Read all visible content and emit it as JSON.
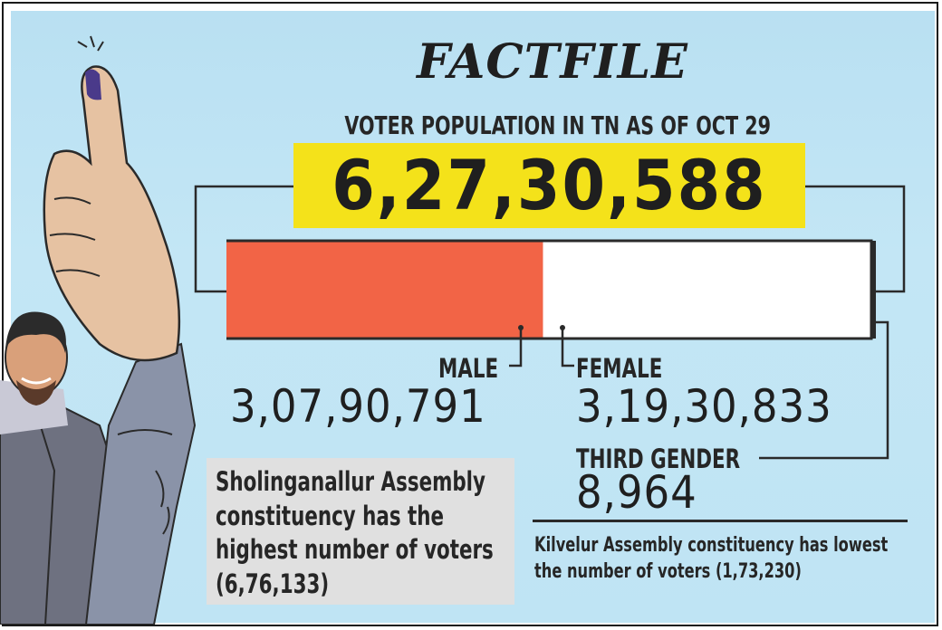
{
  "title": "FACTFILE",
  "subtitle": "VOTER POPULATION IN TN AS OF OCT 29",
  "total": "6,27,30,588",
  "colors": {
    "male": "#f26446",
    "female": "#ffffff",
    "highlight": "#f4e21a",
    "panel": "#c1e5f5"
  },
  "chart_data": {
    "type": "bar",
    "stacked": true,
    "orientation": "horizontal",
    "title": "VOTER POPULATION IN TN AS OF OCT 29",
    "total": 62730588,
    "categories": [
      "MALE",
      "FEMALE",
      "THIRD GENDER"
    ],
    "values": [
      30790791,
      31930833,
      8964
    ],
    "labels": [
      "3,07,90,791",
      "3,19,30,833",
      "8,964"
    ]
  },
  "notes": {
    "highest": "Sholinganallur Assembly constituency has the highest number of voters (6,76,133)",
    "lowest": "Kilvelur Assembly constituency has lowest the number of voters (1,73,230)"
  },
  "icons": [
    "raised-inked-finger-hand-illustration",
    "voter-man-illustration"
  ]
}
